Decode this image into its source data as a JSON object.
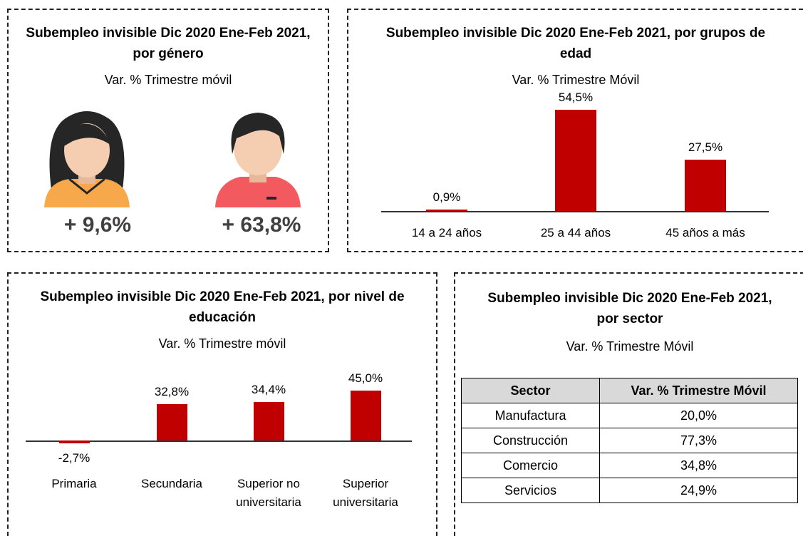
{
  "gender_panel": {
    "title": "Subempleo invisible Dic 2020 Ene-Feb 2021, por género",
    "subtitle": "Var. % Trimestre móvil",
    "items": [
      "+ 9,6%",
      "+ 63,8%"
    ]
  },
  "chart_data": [
    {
      "type": "bar",
      "title": "Subempleo invisible Dic 2020 Ene-Feb 2021, por grupos de edad",
      "subtitle": "Var. % Trimestre Móvil",
      "categories": [
        "14 a 24 años",
        "25 a 44 años",
        "45 años a más"
      ],
      "values": [
        0.9,
        54.5,
        27.5
      ],
      "value_labels": [
        "0,9%",
        "54,5%",
        "27,5%"
      ],
      "color": "#c00000"
    },
    {
      "type": "bar",
      "title": "Subempleo invisible Dic 2020 Ene-Feb 2021, por nivel de educación",
      "subtitle": "Var. % Trimestre móvil",
      "categories": [
        "Primaria",
        "Secundaria",
        "Superior no universitaria",
        "Superior universitaria"
      ],
      "values": [
        -2.7,
        32.8,
        34.4,
        45.0
      ],
      "value_labels": [
        "-2,7%",
        "32,8%",
        "34,4%",
        "45,0%"
      ],
      "color": "#c00000"
    }
  ],
  "sector_panel": {
    "title": "Subempleo invisible Dic 2020 Ene-Feb 2021, por sector",
    "subtitle": "Var. % Trimestre Móvil",
    "table": {
      "header": [
        "Sector",
        "Var. % Trimestre Móvil"
      ],
      "rows": [
        [
          "Manufactura",
          "20,0%"
        ],
        [
          "Construcción",
          "77,3%"
        ],
        [
          "Comercio",
          "34,8%"
        ],
        [
          "Servicios",
          "24,9%"
        ]
      ]
    }
  }
}
